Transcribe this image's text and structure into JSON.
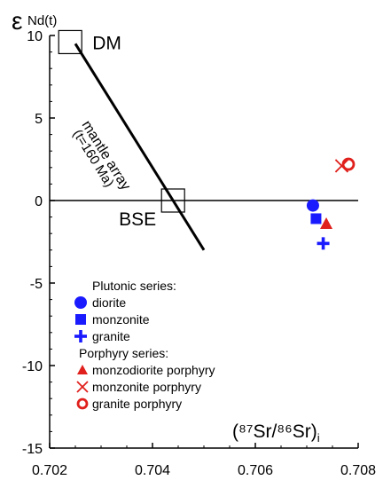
{
  "chart_data": {
    "type": "scatter",
    "y_label_main": "ε",
    "y_label_sub": "Nd(t)",
    "x_label": "(⁸⁷Sr/⁸⁶Sr)",
    "x_label_sub": "i",
    "xlim": [
      0.702,
      0.708
    ],
    "ylim": [
      -15,
      10
    ],
    "x_ticks": [
      "0.702",
      "0.704",
      "0.706",
      "0.708"
    ],
    "x_tick_values": [
      0.702,
      0.704,
      0.706,
      0.708
    ],
    "y_ticks": [
      "10",
      "5",
      "0",
      "-5",
      "-10",
      "-15"
    ],
    "y_tick_values": [
      10,
      5,
      0,
      -5,
      -10,
      -15
    ],
    "grid": false,
    "reference_line_y": 0,
    "mantle_array": {
      "label_line1": "mantle array",
      "label_line2": "(t=160 Ma)",
      "x": [
        0.7025,
        0.705
      ],
      "y": [
        9.5,
        -3.0
      ]
    },
    "reference_points": [
      {
        "label": "DM",
        "x": 0.7024,
        "y": 9.6
      },
      {
        "label": "BSE",
        "x": 0.7044,
        "y": 0.0
      }
    ],
    "series": [
      {
        "name": "diorite",
        "marker": "circle",
        "color": "#1a1aff",
        "x": [
          0.70712
        ],
        "y": [
          -0.3
        ]
      },
      {
        "name": "monzonite",
        "marker": "square",
        "color": "#1a1aff",
        "x": [
          0.70718
        ],
        "y": [
          -1.1
        ]
      },
      {
        "name": "granite",
        "marker": "plus",
        "color": "#1a1aff",
        "x": [
          0.70732
        ],
        "y": [
          -2.6
        ]
      },
      {
        "name": "monzodiorite porphyry",
        "marker": "triangle",
        "color": "#e0201c",
        "x": [
          0.70738
        ],
        "y": [
          -1.4
        ]
      },
      {
        "name": "monzonite porphyry",
        "marker": "x",
        "color": "#e0201c",
        "x": [
          0.70768
        ],
        "y": [
          2.1
        ]
      },
      {
        "name": "granite porphyry",
        "marker": "ring",
        "color": "#e0201c",
        "x": [
          0.70781
        ],
        "y": [
          2.2
        ]
      }
    ],
    "legend": {
      "placement": "bottom-left",
      "group1_title": "Plutonic series:",
      "group1_items": [
        "diorite",
        "monzonite",
        "granite"
      ],
      "group2_title": "Porphyry series:",
      "group2_items": [
        "monzodiorite porphyry",
        "monzonite porphyry",
        "granite porphyry"
      ]
    }
  }
}
